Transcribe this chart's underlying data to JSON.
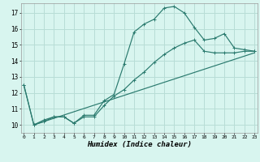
{
  "xlabel": "Humidex (Indice chaleur)",
  "background_color": "#d8f5ef",
  "grid_color": "#b8ddd6",
  "line_color": "#2a7a6e",
  "x_ticks": [
    0,
    1,
    2,
    3,
    4,
    5,
    6,
    7,
    8,
    9,
    10,
    11,
    12,
    13,
    14,
    15,
    16,
    17,
    18,
    19,
    20,
    21,
    22,
    23
  ],
  "y_ticks": [
    10,
    11,
    12,
    13,
    14,
    15,
    16,
    17
  ],
  "ylim": [
    9.5,
    17.6
  ],
  "xlim": [
    -0.3,
    23.3
  ],
  "series1_x": [
    0,
    1,
    2,
    3,
    4,
    5,
    6,
    7,
    8,
    9,
    10,
    11,
    12,
    13,
    14,
    15,
    16,
    17,
    18,
    19,
    20,
    21,
    22,
    23
  ],
  "series1_y": [
    12.5,
    10.0,
    10.3,
    10.5,
    10.5,
    10.1,
    10.6,
    10.6,
    11.5,
    11.9,
    13.8,
    15.8,
    16.3,
    16.6,
    17.3,
    17.4,
    17.0,
    16.1,
    15.3,
    15.4,
    15.7,
    14.8,
    14.7,
    14.6
  ],
  "series2_x": [
    0,
    1,
    2,
    3,
    4,
    5,
    6,
    7,
    8,
    9,
    10,
    11,
    12,
    13,
    14,
    15,
    16,
    17,
    18,
    19,
    20,
    21,
    22,
    23
  ],
  "series2_y": [
    12.5,
    10.0,
    10.2,
    10.5,
    10.5,
    10.1,
    10.5,
    10.5,
    11.2,
    11.8,
    12.2,
    12.8,
    13.3,
    13.9,
    14.4,
    14.8,
    15.1,
    15.3,
    14.6,
    14.5,
    14.5,
    14.5,
    14.6,
    14.6
  ],
  "series3_x": [
    1,
    23
  ],
  "series3_y": [
    10.0,
    14.5
  ]
}
